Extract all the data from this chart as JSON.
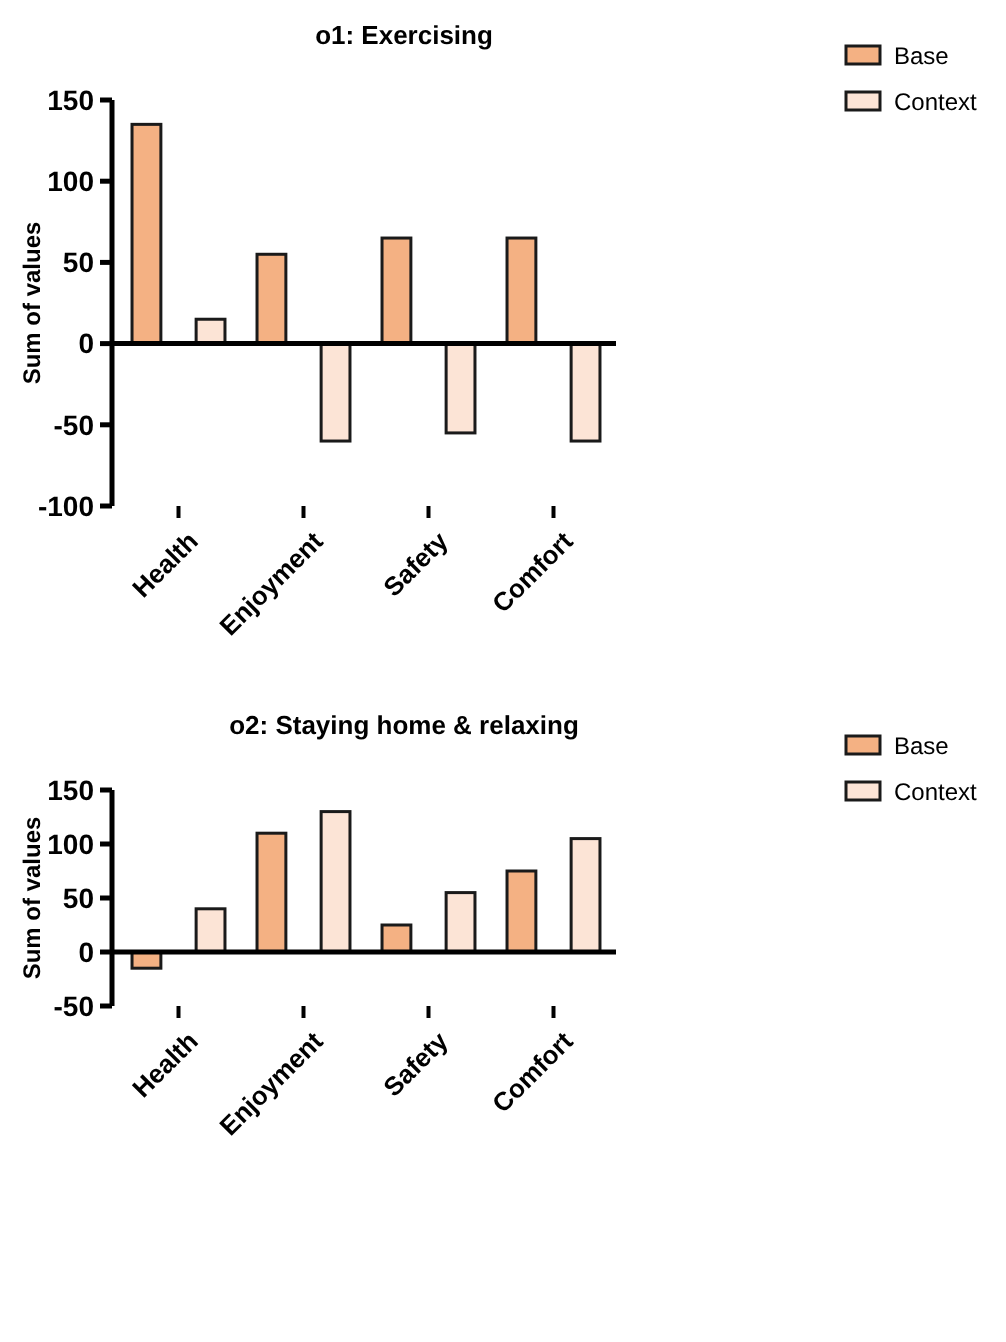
{
  "chart_data": [
    {
      "type": "bar",
      "title": "o1: Exercising",
      "ylabel": "Sum of values",
      "categories": [
        "Health",
        "Enjoyment",
        "Safety",
        "Comfort"
      ],
      "series": [
        {
          "name": "Base",
          "color": "#f4b183",
          "values": [
            135,
            55,
            65,
            65
          ]
        },
        {
          "name": "Context",
          "color": "#fce4d6",
          "values": [
            15,
            -60,
            -55,
            -60
          ]
        }
      ],
      "ylim": [
        -100,
        150
      ],
      "yticks": [
        -100,
        -50,
        0,
        50,
        100,
        150
      ],
      "legend": "top right"
    },
    {
      "type": "bar",
      "title": "o2: Staying home & relaxing",
      "ylabel": "Sum of values",
      "categories": [
        "Health",
        "Enjoyment",
        "Safety",
        "Comfort"
      ],
      "series": [
        {
          "name": "Base",
          "color": "#f4b183",
          "values": [
            -15,
            110,
            25,
            75
          ]
        },
        {
          "name": "Context",
          "color": "#fce4d6",
          "values": [
            40,
            130,
            55,
            105
          ]
        }
      ],
      "ylim": [
        -50,
        150
      ],
      "yticks": [
        -50,
        0,
        50,
        100,
        150
      ],
      "legend": "top right"
    }
  ]
}
